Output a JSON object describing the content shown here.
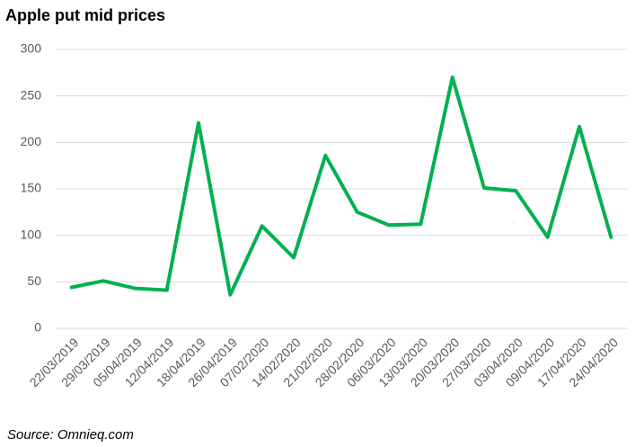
{
  "chart_data": {
    "type": "line",
    "title": "Apple put mid prices",
    "source": "Source: Omnieq.com",
    "categories": [
      "22/03/2019",
      "29/03/2019",
      "05/04/2019",
      "12/04/2019",
      "18/04/2019",
      "26/04/2019",
      "07/02/2020",
      "14/02/2020",
      "21/02/2020",
      "28/02/2020",
      "06/03/2020",
      "13/03/2020",
      "20/03/2020",
      "27/03/2020",
      "03/04/2020",
      "09/04/2020",
      "17/04/2020",
      "24/04/2020"
    ],
    "values": [
      44,
      51,
      43,
      41,
      221,
      36,
      110,
      76,
      186,
      125,
      111,
      112,
      270,
      151,
      148,
      98,
      217,
      98
    ],
    "color": "#00b050",
    "ylim": [
      0,
      300
    ],
    "yticks": [
      0,
      50,
      100,
      150,
      200,
      250,
      300
    ],
    "grid": true
  }
}
